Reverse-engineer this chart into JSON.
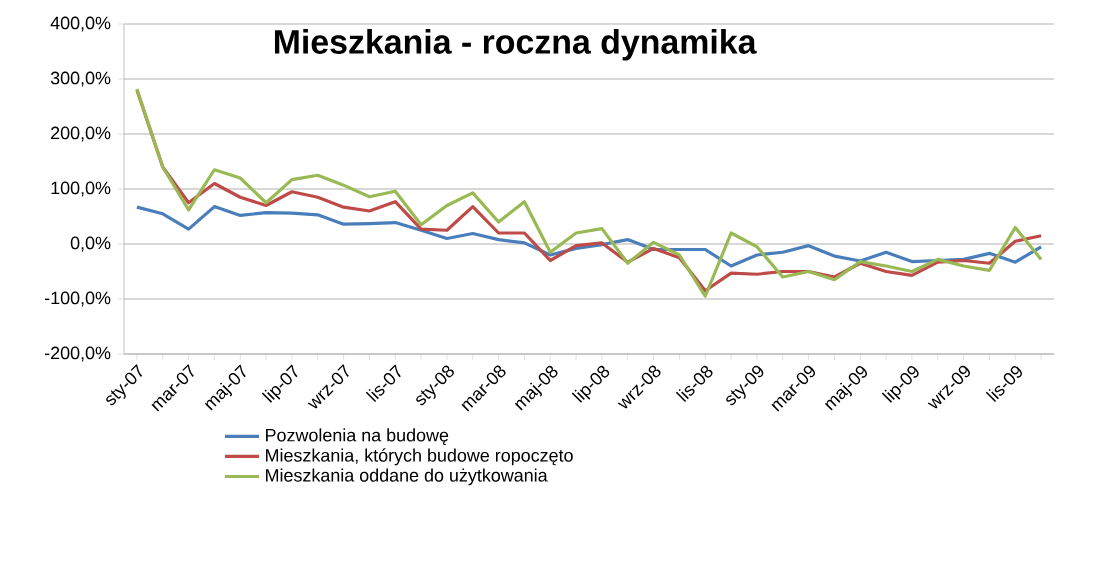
{
  "chart_data": {
    "type": "line",
    "title": "Mieszkania - roczna dynamika",
    "categories": [
      "sty-07",
      null,
      "mar-07",
      null,
      "maj-07",
      null,
      "lip-07",
      null,
      "wrz-07",
      null,
      "lis-07",
      null,
      "sty-08",
      null,
      "mar-08",
      null,
      "maj-08",
      null,
      "lip-08",
      null,
      "wrz-08",
      null,
      "lis-08",
      null,
      "sty-09",
      null,
      "mar-09",
      null,
      "maj-09",
      null,
      "lip-09",
      null,
      "wrz-09",
      null,
      "lis-09",
      null
    ],
    "series": [
      {
        "name": "Pozwolenia na budowę",
        "color": "#4a7ebb",
        "values": [
          67,
          55,
          27,
          68,
          52,
          57,
          56,
          53,
          36,
          37,
          39,
          25,
          10,
          19,
          8,
          2,
          -20,
          -8,
          -1,
          8,
          -10,
          -10,
          -10,
          -40,
          -20,
          -15,
          -3,
          -22,
          -31,
          -15,
          -32,
          -30,
          -28,
          -17,
          -33,
          -5
        ]
      },
      {
        "name": "Mieszkania, których budowe ropoczęto",
        "color": "#be4b48",
        "values": [
          280,
          140,
          75,
          110,
          85,
          70,
          95,
          85,
          67,
          60,
          77,
          27,
          25,
          68,
          20,
          20,
          -30,
          -3,
          2,
          -33,
          -8,
          -25,
          -85,
          -53,
          -55,
          -50,
          -50,
          -60,
          -35,
          -50,
          -57,
          -33,
          -30,
          -35,
          5,
          15
        ]
      },
      {
        "name": "Mieszkania oddane do użytkowania",
        "color": "#98b954",
        "values": [
          282,
          140,
          62,
          135,
          120,
          75,
          117,
          125,
          107,
          86,
          96,
          35,
          70,
          93,
          40,
          77,
          -15,
          20,
          28,
          -35,
          3,
          -20,
          -95,
          20,
          -5,
          -60,
          -50,
          -65,
          -32,
          -40,
          -50,
          -28,
          -40,
          -48,
          30,
          -28
        ]
      }
    ],
    "ylim": [
      -200,
      400
    ],
    "yticks": [
      {
        "value": -200,
        "label": "-200,0%"
      },
      {
        "value": -100,
        "label": "-100,0%"
      },
      {
        "value": 0,
        "label": "0,0%"
      },
      {
        "value": 100,
        "label": "100,0%"
      },
      {
        "value": 200,
        "label": "200,0%"
      },
      {
        "value": 300,
        "label": "300,0%"
      },
      {
        "value": 400,
        "label": "400,0%"
      }
    ],
    "grid": "y",
    "legend": "bottom",
    "marker": "none",
    "line_style": "solid"
  }
}
